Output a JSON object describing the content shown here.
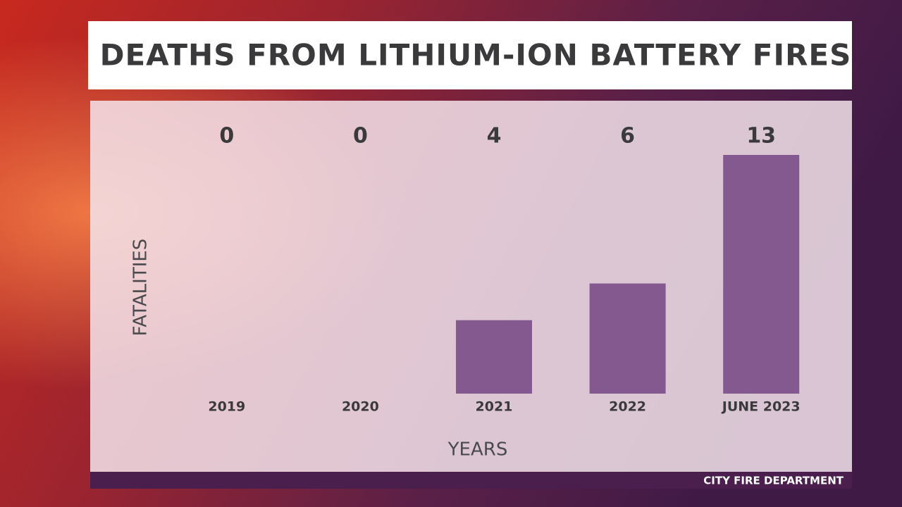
{
  "chart_data": {
    "type": "bar",
    "title": "DEATHS FROM LITHIUM-ION BATTERY FIRES",
    "categories": [
      "2019",
      "2020",
      "2021",
      "2022",
      "JUNE 2023"
    ],
    "values": [
      0,
      0,
      4,
      6,
      13
    ],
    "color": "#84598f",
    "y_label": "FATALITIES",
    "x_label": "YEARS",
    "source": "CITY FIRE DEPARTMENT"
  }
}
